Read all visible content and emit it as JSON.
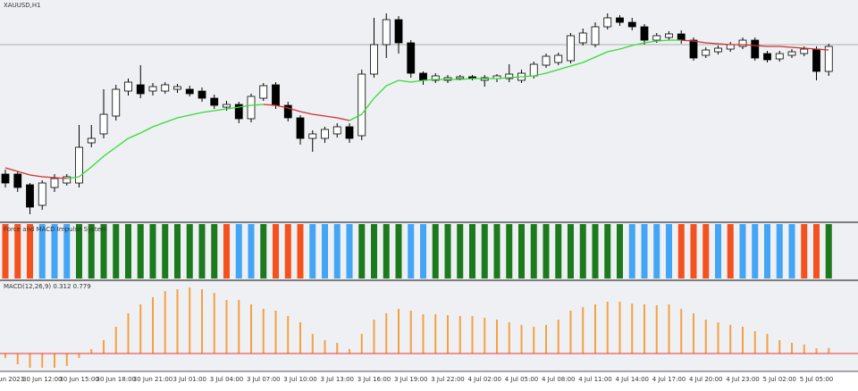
{
  "chart_data": [
    {
      "type": "candlestick",
      "title": "XAUUSD,H1",
      "categories": [
        "30 Jun 2023",
        null,
        null,
        "30 Jun 12:00",
        null,
        null,
        "30 Jun 15:00",
        null,
        null,
        "30 Jun 18:00",
        null,
        null,
        "30 Jun 21:00",
        null,
        null,
        "3 Jul 01:00",
        null,
        null,
        "3 Jul 04:00",
        null,
        null,
        "3 Jul 07:00",
        null,
        null,
        "3 Jul 10:00",
        null,
        null,
        "3 Jul 13:00",
        null,
        null,
        "3 Jul 16:00",
        null,
        null,
        "3 Jul 19:00",
        null,
        null,
        "3 Jul 22:00",
        null,
        null,
        "4 Jul 02:00",
        null,
        null,
        "4 Jul 05:00",
        null,
        null,
        "4 Jul 08:00",
        null,
        null,
        "4 Jul 11:00",
        null,
        null,
        "4 Jul 14:00",
        null,
        null,
        "4 Jul 17:00",
        null,
        null,
        "4 Jul 20:00",
        null,
        null,
        "4 Jul 23:00",
        null,
        null,
        "5 Jul 02:00",
        null,
        null,
        "5 Jul 05:00",
        null
      ],
      "open": [
        55,
        55,
        43,
        20,
        40,
        45,
        45,
        90,
        100,
        120,
        148,
        155,
        148,
        148,
        150,
        150,
        148,
        140,
        130,
        133,
        117,
        140,
        155,
        132,
        118,
        95,
        95,
        100,
        108,
        98,
        167,
        200,
        228,
        202,
        168,
        160,
        160,
        162,
        164,
        160,
        162,
        162,
        160,
        165,
        177,
        180,
        182,
        202,
        200,
        220,
        230,
        225,
        220,
        205,
        208,
        212,
        205,
        188,
        192,
        195,
        198,
        205,
        190,
        184,
        188,
        190,
        195,
        170
      ],
      "high": [
        60,
        58,
        45,
        48,
        55,
        55,
        110,
        110,
        150,
        155,
        162,
        177,
        157,
        158,
        156,
        154,
        152,
        144,
        137,
        136,
        145,
        157,
        158,
        136,
        121,
        104,
        108,
        112,
        112,
        172,
        230,
        235,
        232,
        205,
        170,
        168,
        166,
        166,
        166,
        166,
        167,
        178,
        172,
        181,
        190,
        191,
        213,
        218,
        225,
        235,
        233,
        230,
        223,
        213,
        215,
        216,
        208,
        197,
        199,
        203,
        208,
        208,
        193,
        193,
        195,
        198,
        198,
        201
      ],
      "low": [
        40,
        35,
        10,
        15,
        35,
        42,
        40,
        85,
        95,
        115,
        143,
        140,
        143,
        145,
        146,
        142,
        136,
        128,
        126,
        112,
        113,
        137,
        128,
        114,
        88,
        80,
        90,
        96,
        90,
        93,
        163,
        185,
        190,
        163,
        155,
        157,
        157,
        160,
        160,
        153,
        158,
        158,
        157,
        162,
        174,
        177,
        179,
        199,
        197,
        217,
        221,
        216,
        200,
        202,
        205,
        201,
        182,
        185,
        189,
        192,
        195,
        182,
        180,
        181,
        185,
        187,
        160,
        165
      ],
      "close": [
        45,
        40,
        18,
        45,
        50,
        52,
        85,
        95,
        122,
        150,
        158,
        145,
        153,
        155,
        153,
        145,
        140,
        132,
        133,
        117,
        142,
        154,
        132,
        118,
        95,
        100,
        105,
        108,
        95,
        167,
        200,
        228,
        202,
        168,
        160,
        165,
        163,
        164,
        162,
        163,
        165,
        167,
        168,
        178,
        187,
        188,
        210,
        213,
        220,
        230,
        225,
        220,
        205,
        210,
        212,
        205,
        185,
        194,
        196,
        200,
        205,
        185,
        183,
        190,
        192,
        195,
        170,
        198
      ],
      "ylim": [
        0,
        250
      ],
      "up_color": "#ffffff",
      "down_color": "#000000",
      "price_line": 200,
      "series": [
        {
          "values": [
            62,
            58,
            54,
            52,
            51,
            50,
            52,
            63,
            75,
            85,
            95,
            101,
            108,
            113,
            118,
            121,
            124,
            126,
            128,
            130,
            132,
            133,
            132,
            129,
            125,
            122,
            120,
            118,
            115,
            122,
            140,
            154,
            160,
            158,
            160,
            161,
            161,
            161,
            162,
            162,
            162,
            163,
            164,
            165,
            168,
            172,
            176,
            180,
            186,
            192,
            195,
            199,
            202,
            204,
            205,
            205,
            204,
            202,
            201,
            200,
            200,
            199,
            198,
            198,
            197,
            196,
            195,
            194
          ],
          "colors": [
            "#d32f2f",
            "#d32f2f",
            "#d32f2f",
            "#d32f2f",
            "#d32f2f",
            "#d32f2f",
            "#33dd33",
            "#33dd33",
            "#33dd33",
            "#33dd33",
            "#33dd33",
            "#33dd33",
            "#33dd33",
            "#33dd33",
            "#33dd33",
            "#33dd33",
            "#33dd33",
            "#33dd33",
            "#33dd33",
            "#33dd33",
            "#33dd33",
            "#33dd33",
            "#d32f2f",
            "#d32f2f",
            "#d32f2f",
            "#d32f2f",
            "#d32f2f",
            "#d32f2f",
            "#d32f2f",
            "#33dd33",
            "#33dd33",
            "#33dd33",
            "#33dd33",
            "#33dd33",
            "#33dd33",
            "#33dd33",
            "#33dd33",
            "#33dd33",
            "#33dd33",
            "#33dd33",
            "#33dd33",
            "#33dd33",
            "#33dd33",
            "#33dd33",
            "#33dd33",
            "#33dd33",
            "#33dd33",
            "#33dd33",
            "#33dd33",
            "#33dd33",
            "#33dd33",
            "#33dd33",
            "#33dd33",
            "#33dd33",
            "#33dd33",
            "#33dd33",
            "#d32f2f",
            "#d32f2f",
            "#d32f2f",
            "#d32f2f",
            "#d32f2f",
            "#d32f2f",
            "#d32f2f",
            "#d32f2f",
            "#d32f2f",
            "#d32f2f",
            "#d32f2f",
            "#d32f2f"
          ]
        }
      ]
    },
    {
      "type": "impulse",
      "title": "Force and MACD Impulse System",
      "colors": [
        "#f4511e",
        "#f4511e",
        "#f4511e",
        "#42a5f5",
        "#42a5f5",
        "#42a5f5",
        "#1b7a1b",
        "#1b7a1b",
        "#1b7a1b",
        "#1b7a1b",
        "#1b7a1b",
        "#1b7a1b",
        "#1b7a1b",
        "#1b7a1b",
        "#1b7a1b",
        "#1b7a1b",
        "#1b7a1b",
        "#1b7a1b",
        "#f4511e",
        "#42a5f5",
        "#42a5f5",
        "#1b7a1b",
        "#f4511e",
        "#f4511e",
        "#f4511e",
        "#42a5f5",
        "#42a5f5",
        "#42a5f5",
        "#42a5f5",
        "#1b7a1b",
        "#1b7a1b",
        "#1b7a1b",
        "#1b7a1b",
        "#42a5f5",
        "#42a5f5",
        "#1b7a1b",
        "#1b7a1b",
        "#1b7a1b",
        "#1b7a1b",
        "#1b7a1b",
        "#1b7a1b",
        "#1b7a1b",
        "#1b7a1b",
        "#1b7a1b",
        "#1b7a1b",
        "#1b7a1b",
        "#1b7a1b",
        "#1b7a1b",
        "#1b7a1b",
        "#1b7a1b",
        "#1b7a1b",
        "#42a5f5",
        "#42a5f5",
        "#42a5f5",
        "#42a5f5",
        "#f4511e",
        "#f4511e",
        "#f4511e",
        "#42a5f5",
        "#f4511e",
        "#42a5f5",
        "#42a5f5",
        "#42a5f5",
        "#42a5f5",
        "#42a5f5",
        "#f4511e",
        "#f4511e",
        "#1b7a1b"
      ]
    },
    {
      "type": "bar",
      "title": "MACD(12,26,9) 0.312 0.779",
      "color": "#f5a142",
      "zero_line_color": "#e53935",
      "ylim": [
        -1,
        3.9
      ],
      "values": [
        -0.25,
        -0.6,
        -0.8,
        -0.8,
        -0.8,
        -0.7,
        -0.25,
        0.25,
        0.75,
        1.5,
        2.25,
        2.75,
        3.15,
        3.5,
        3.6,
        3.7,
        3.6,
        3.4,
        3.0,
        3.0,
        2.75,
        2.5,
        2.4,
        2.1,
        1.75,
        1.1,
        0.75,
        0.6,
        0.25,
        1.1,
        1.9,
        2.25,
        2.5,
        2.4,
        2.2,
        2.2,
        2.15,
        2.1,
        2.1,
        2.0,
        1.9,
        1.75,
        1.6,
        1.5,
        1.6,
        1.9,
        2.4,
        2.6,
        2.75,
        2.9,
        2.9,
        2.8,
        2.75,
        2.7,
        2.75,
        2.5,
        2.25,
        1.9,
        1.75,
        1.6,
        1.5,
        1.25,
        1.1,
        0.75,
        0.6,
        0.5,
        0.3,
        0.312
      ]
    }
  ]
}
